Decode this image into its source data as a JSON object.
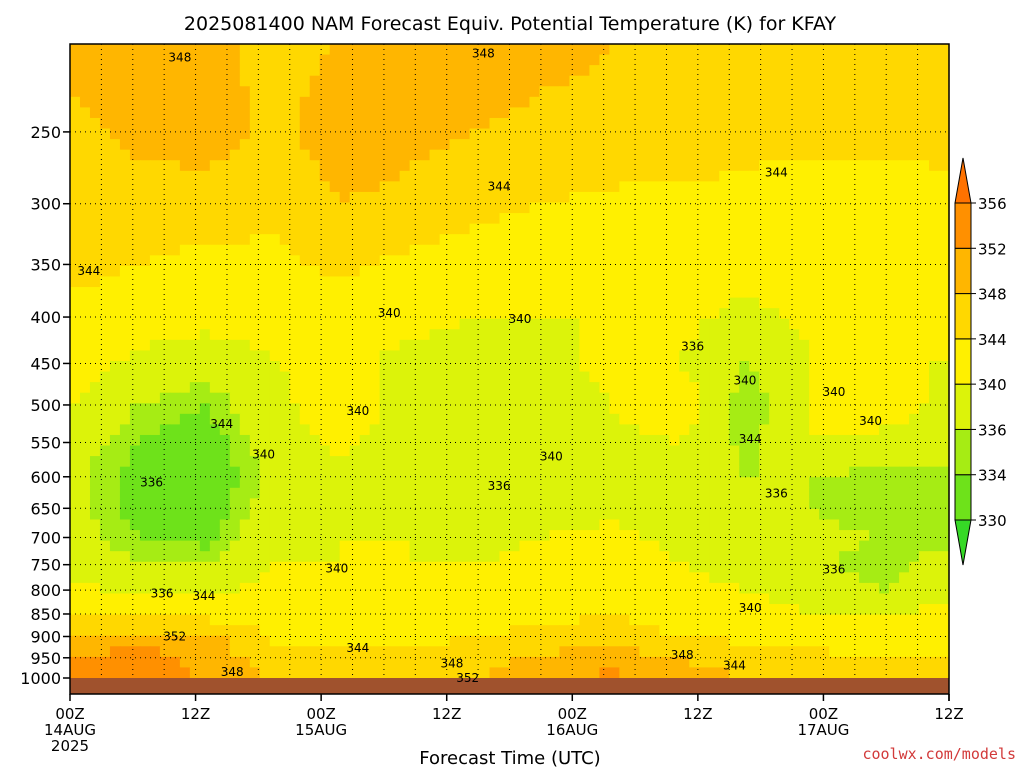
{
  "chart_data": {
    "type": "heatmap",
    "title": "2025081400 NAM Forecast Equiv. Potential Temperature (K) for KFAY",
    "xlabel": "Forecast Time (UTC)",
    "ylabel": "",
    "credit": "coolwx.com/models",
    "y_scale": "log-pressure",
    "ylim": [
      1000,
      200
    ],
    "y_ticks": [
      250,
      300,
      350,
      400,
      450,
      500,
      550,
      600,
      650,
      700,
      750,
      800,
      850,
      900,
      950,
      1000
    ],
    "x_ticks": [
      {
        "hour": 0,
        "label": "00Z",
        "date": "14AUG",
        "year": "2025"
      },
      {
        "hour": 12,
        "label": "12Z",
        "date": "",
        "year": ""
      },
      {
        "hour": 24,
        "label": "00Z",
        "date": "15AUG",
        "year": ""
      },
      {
        "hour": 36,
        "label": "12Z",
        "date": "",
        "year": ""
      },
      {
        "hour": 48,
        "label": "00Z",
        "date": "16AUG",
        "year": ""
      },
      {
        "hour": 60,
        "label": "12Z",
        "date": "",
        "year": ""
      },
      {
        "hour": 72,
        "label": "00Z",
        "date": "17AUG",
        "year": ""
      },
      {
        "hour": 84,
        "label": "12Z",
        "date": "",
        "year": ""
      }
    ],
    "xlim": [
      0,
      84
    ],
    "grid": true,
    "colorbar": {
      "placement": "right",
      "levels": [
        330,
        334,
        336,
        340,
        344,
        348,
        352,
        356
      ],
      "colors": [
        "#36d926",
        "#6ee21a",
        "#a6ec14",
        "#dcf30a",
        "#fff000",
        "#ffd800",
        "#ffb600",
        "#ff9000",
        "#ff7200"
      ]
    },
    "ground_color": "#a0522d",
    "rows": [
      {
        "p": 200,
        "v": [
          349,
          352,
          349,
          347,
          348,
          349,
          350,
          349,
          348,
          348,
          347,
          348,
          348,
          347
        ]
      },
      {
        "p": 250,
        "v": [
          347,
          349,
          350,
          347,
          350,
          349,
          348,
          347,
          347,
          346,
          345,
          345,
          345,
          345
        ]
      },
      {
        "p": 300,
        "v": [
          346,
          346,
          346,
          345,
          348,
          347,
          345,
          344,
          343,
          343,
          343,
          342,
          342,
          343
        ]
      },
      {
        "p": 350,
        "v": [
          345,
          344,
          343,
          343,
          345,
          343,
          342,
          341,
          342,
          342,
          341,
          342,
          342,
          342
        ]
      },
      {
        "p": 400,
        "v": [
          343,
          342,
          341,
          341,
          342,
          341,
          340,
          340,
          340,
          341,
          339,
          341,
          341,
          341
        ]
      },
      {
        "p": 450,
        "v": [
          342,
          339,
          338,
          340,
          341,
          339,
          338,
          339,
          341,
          340,
          336,
          340,
          340,
          340
        ]
      },
      {
        "p": 500,
        "v": [
          340,
          336,
          334,
          339,
          342,
          339,
          339,
          338,
          340,
          343,
          334,
          340,
          342,
          339
        ]
      },
      {
        "p": 550,
        "v": [
          338,
          334,
          332,
          338,
          341,
          338,
          338,
          337,
          339,
          340,
          335,
          340,
          339,
          338
        ]
      },
      {
        "p": 600,
        "v": [
          337,
          333,
          331,
          337,
          339,
          338,
          338,
          337,
          338,
          339,
          336,
          336,
          335,
          335
        ]
      },
      {
        "p": 650,
        "v": [
          337,
          333,
          332,
          338,
          339,
          339,
          338,
          338,
          339,
          338,
          337,
          336,
          334,
          334
        ]
      },
      {
        "p": 700,
        "v": [
          338,
          334,
          333,
          339,
          340,
          340,
          339,
          340,
          341,
          339,
          338,
          337,
          336,
          335
        ]
      },
      {
        "p": 750,
        "v": [
          339,
          336,
          336,
          340,
          340,
          340,
          340,
          341,
          342,
          340,
          339,
          337,
          334,
          338
        ]
      },
      {
        "p": 800,
        "v": [
          341,
          339,
          339,
          341,
          341,
          341,
          341,
          342,
          343,
          341,
          340,
          339,
          336,
          339
        ]
      },
      {
        "p": 850,
        "v": [
          343,
          342,
          342,
          342,
          342,
          342,
          342,
          343,
          344,
          342,
          341,
          340,
          340,
          341
        ]
      },
      {
        "p": 900,
        "v": [
          348,
          350,
          350,
          343,
          343,
          343,
          344,
          345,
          346,
          344,
          343,
          342,
          342,
          342
        ]
      },
      {
        "p": 950,
        "v": [
          352,
          354,
          350,
          346,
          345,
          345,
          346,
          349,
          350,
          348,
          346,
          345,
          344,
          344
        ]
      },
      {
        "p": 1000,
        "v": [
          354,
          355,
          352,
          348,
          347,
          347,
          348,
          352,
          353,
          350,
          348,
          347,
          346,
          346
        ]
      }
    ],
    "contour_labels": [
      {
        "hour": 10.5,
        "p": 207,
        "text": "348"
      },
      {
        "hour": 39.5,
        "p": 205,
        "text": "348"
      },
      {
        "hour": 67.5,
        "p": 277,
        "text": "344"
      },
      {
        "hour": 41,
        "p": 287,
        "text": "344"
      },
      {
        "hour": 1.8,
        "p": 356,
        "text": "344"
      },
      {
        "hour": 30.5,
        "p": 396,
        "text": "340"
      },
      {
        "hour": 43,
        "p": 402,
        "text": "340"
      },
      {
        "hour": 59.5,
        "p": 431,
        "text": "336"
      },
      {
        "hour": 64.5,
        "p": 470,
        "text": "340"
      },
      {
        "hour": 73,
        "p": 484,
        "text": "340"
      },
      {
        "hour": 76.5,
        "p": 521,
        "text": "340"
      },
      {
        "hour": 27.5,
        "p": 508,
        "text": "340"
      },
      {
        "hour": 14.5,
        "p": 525,
        "text": "344"
      },
      {
        "hour": 18.5,
        "p": 567,
        "text": "340"
      },
      {
        "hour": 46,
        "p": 570,
        "text": "340"
      },
      {
        "hour": 41,
        "p": 614,
        "text": "336"
      },
      {
        "hour": 65,
        "p": 545,
        "text": "344"
      },
      {
        "hour": 67.5,
        "p": 626,
        "text": "336"
      },
      {
        "hour": 7.8,
        "p": 609,
        "text": "336"
      },
      {
        "hour": 25.5,
        "p": 757,
        "text": "340"
      },
      {
        "hour": 73,
        "p": 759,
        "text": "336"
      },
      {
        "hour": 65,
        "p": 837,
        "text": "340"
      },
      {
        "hour": 8.8,
        "p": 807,
        "text": "336"
      },
      {
        "hour": 12.8,
        "p": 812,
        "text": "344"
      },
      {
        "hour": 10,
        "p": 900,
        "text": "352"
      },
      {
        "hour": 27.5,
        "p": 927,
        "text": "344"
      },
      {
        "hour": 36.5,
        "p": 964,
        "text": "348"
      },
      {
        "hour": 58.5,
        "p": 943,
        "text": "348"
      },
      {
        "hour": 63.5,
        "p": 969,
        "text": "344"
      },
      {
        "hour": 15.5,
        "p": 985,
        "text": "348"
      },
      {
        "hour": 38,
        "p": 1000,
        "text": "352"
      }
    ]
  }
}
